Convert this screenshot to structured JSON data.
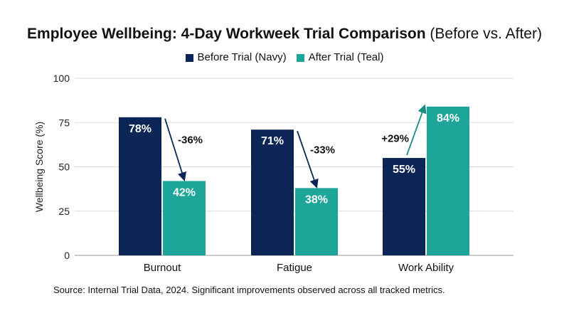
{
  "title_main": "Employee Wellbeing: 4-Day Workweek Trial Comparison",
  "title_sub": "(Before vs. After)",
  "source": "Source: Internal Trial Data, 2024. Significant improvements observed across all tracked metrics.",
  "colors": {
    "before": "#0b2557",
    "after": "#1da59a",
    "grid": "#d9d9d9",
    "axis": "#444444",
    "arrow": "#0b2557",
    "arrow_up": "#1a8d84"
  },
  "chart_data": {
    "type": "bar",
    "categories": [
      "Burnout",
      "Fatigue",
      "Work Ability"
    ],
    "series": [
      {
        "name": "Before Trial (Navy)",
        "values": [
          78,
          71,
          55
        ],
        "labels": [
          "78%",
          "71%",
          "55%"
        ]
      },
      {
        "name": "After Trial (Teal)",
        "values": [
          42,
          38,
          84
        ],
        "labels": [
          "42%",
          "38%",
          "84%"
        ]
      }
    ],
    "changes": [
      "-36%",
      "-33%",
      "+29%"
    ],
    "ylabel": "Wellbeing Score (%)",
    "xlabel": "",
    "ylim": [
      0,
      100
    ],
    "yticks": [
      0,
      25,
      50,
      75,
      100
    ],
    "grid": true,
    "legend_position": "top-center"
  }
}
